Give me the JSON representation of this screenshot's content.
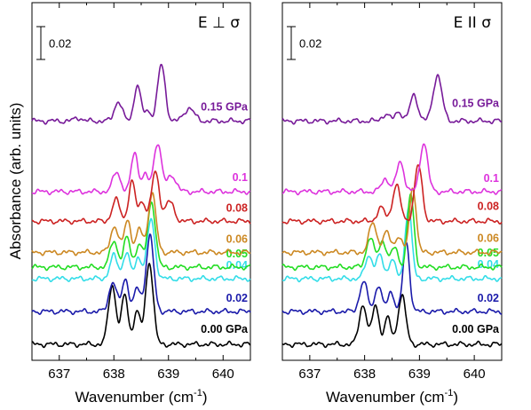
{
  "chart_data": [
    {
      "type": "line",
      "title": "E ⊥ σ",
      "xlabel": "Wavenumber (cm⁻¹)",
      "ylabel": "Absorbance (arb. units)",
      "xlim": [
        636.5,
        640.5
      ],
      "xticks": [
        "637",
        "638",
        "639",
        "640"
      ],
      "scale_bar": "0.02",
      "series": [
        {
          "name": "0.00 GPa",
          "color": "#000000",
          "baseline": 0.0,
          "peaks": [
            [
              637.97,
              0.036,
              0.07
            ],
            [
              638.2,
              0.03,
              0.06
            ],
            [
              638.42,
              0.02,
              0.06
            ],
            [
              638.65,
              0.05,
              0.07
            ]
          ]
        },
        {
          "name": "0.02",
          "color": "#1a1aaa",
          "baseline": 0.02,
          "peaks": [
            [
              637.98,
              0.018,
              0.07
            ],
            [
              638.21,
              0.02,
              0.06
            ],
            [
              638.43,
              0.014,
              0.06
            ],
            [
              638.66,
              0.046,
              0.07
            ]
          ]
        },
        {
          "name": "0.04",
          "color": "#33dde8",
          "baseline": 0.04,
          "peaks": [
            [
              638.0,
              0.014,
              0.07
            ],
            [
              638.23,
              0.016,
              0.06
            ],
            [
              638.45,
              0.013,
              0.06
            ],
            [
              638.68,
              0.036,
              0.07
            ]
          ]
        },
        {
          "name": "0.05",
          "color": "#22dd22",
          "baseline": 0.047,
          "peaks": [
            [
              638.0,
              0.016,
              0.07
            ],
            [
              638.24,
              0.018,
              0.06
            ],
            [
              638.46,
              0.014,
              0.06
            ],
            [
              638.69,
              0.04,
              0.07
            ]
          ]
        },
        {
          "name": "0.06",
          "color": "#cc8822",
          "baseline": 0.056,
          "peaks": [
            [
              638.01,
              0.016,
              0.07
            ],
            [
              638.25,
              0.02,
              0.06
            ],
            [
              638.47,
              0.014,
              0.06
            ],
            [
              638.7,
              0.036,
              0.07
            ]
          ]
        },
        {
          "name": "0.08",
          "color": "#cc2222",
          "baseline": 0.075,
          "peaks": [
            [
              638.04,
              0.013,
              0.07
            ],
            [
              638.33,
              0.024,
              0.06
            ],
            [
              638.52,
              0.012,
              0.06
            ],
            [
              638.76,
              0.03,
              0.07
            ],
            [
              639.02,
              0.012,
              0.08
            ]
          ]
        },
        {
          "name": "0.1",
          "color": "#dd33dd",
          "baseline": 0.093,
          "peaks": [
            [
              638.05,
              0.012,
              0.07
            ],
            [
              638.38,
              0.024,
              0.06
            ],
            [
              638.57,
              0.01,
              0.06
            ],
            [
              638.8,
              0.03,
              0.07
            ],
            [
              639.06,
              0.01,
              0.08
            ]
          ]
        },
        {
          "name": "0.15 GPa",
          "color": "#771a99",
          "baseline": 0.136,
          "peaks": [
            [
              638.08,
              0.012,
              0.07
            ],
            [
              638.43,
              0.022,
              0.06
            ],
            [
              638.62,
              0.006,
              0.06
            ],
            [
              638.87,
              0.034,
              0.07
            ],
            [
              639.38,
              0.008,
              0.09
            ],
            [
              637.35,
              0.002,
              0.07
            ]
          ]
        }
      ]
    },
    {
      "type": "line",
      "title": "E II σ",
      "xlabel": "Wavenumber (cm⁻¹)",
      "ylabel": "",
      "xlim": [
        636.5,
        640.5
      ],
      "xticks": [
        "637",
        "638",
        "639",
        "640"
      ],
      "scale_bar": "0.02",
      "series": [
        {
          "name": "0.00 GPa",
          "color": "#000000",
          "baseline": 0.0,
          "peaks": [
            [
              637.97,
              0.024,
              0.07
            ],
            [
              638.2,
              0.024,
              0.06
            ],
            [
              638.42,
              0.016,
              0.06
            ],
            [
              638.68,
              0.03,
              0.07
            ]
          ]
        },
        {
          "name": "0.02",
          "color": "#1a1aaa",
          "baseline": 0.02,
          "peaks": [
            [
              637.98,
              0.018,
              0.07
            ],
            [
              638.25,
              0.016,
              0.06
            ],
            [
              638.48,
              0.012,
              0.06
            ],
            [
              638.76,
              0.042,
              0.06
            ]
          ]
        },
        {
          "name": "0.04",
          "color": "#33dde8",
          "baseline": 0.04,
          "peaks": [
            [
              638.08,
              0.014,
              0.07
            ],
            [
              638.28,
              0.014,
              0.06
            ],
            [
              638.5,
              0.012,
              0.06
            ],
            [
              638.8,
              0.044,
              0.06
            ]
          ]
        },
        {
          "name": "0.05",
          "color": "#22dd22",
          "baseline": 0.047,
          "peaks": [
            [
              638.1,
              0.018,
              0.07
            ],
            [
              638.33,
              0.016,
              0.07
            ],
            [
              638.55,
              0.012,
              0.06
            ],
            [
              638.84,
              0.044,
              0.06
            ]
          ]
        },
        {
          "name": "0.06",
          "color": "#cc8822",
          "baseline": 0.056,
          "peaks": [
            [
              638.15,
              0.018,
              0.07
            ],
            [
              638.4,
              0.012,
              0.07
            ],
            [
              638.62,
              0.01,
              0.06
            ],
            [
              638.88,
              0.04,
              0.06
            ]
          ]
        },
        {
          "name": "0.08",
          "color": "#cc2222",
          "baseline": 0.075,
          "peaks": [
            [
              638.3,
              0.008,
              0.07
            ],
            [
              638.58,
              0.022,
              0.07
            ],
            [
              638.98,
              0.034,
              0.07
            ]
          ]
        },
        {
          "name": "0.1",
          "color": "#dd33dd",
          "baseline": 0.093,
          "peaks": [
            [
              638.38,
              0.008,
              0.07
            ],
            [
              638.65,
              0.018,
              0.07
            ],
            [
              639.08,
              0.03,
              0.07
            ]
          ]
        },
        {
          "name": "0.15 GPa",
          "color": "#771a99",
          "baseline": 0.136,
          "peaks": [
            [
              638.38,
              0.004,
              0.07
            ],
            [
              638.62,
              0.006,
              0.06
            ],
            [
              638.9,
              0.016,
              0.07
            ],
            [
              639.33,
              0.028,
              0.08
            ]
          ]
        }
      ]
    }
  ]
}
